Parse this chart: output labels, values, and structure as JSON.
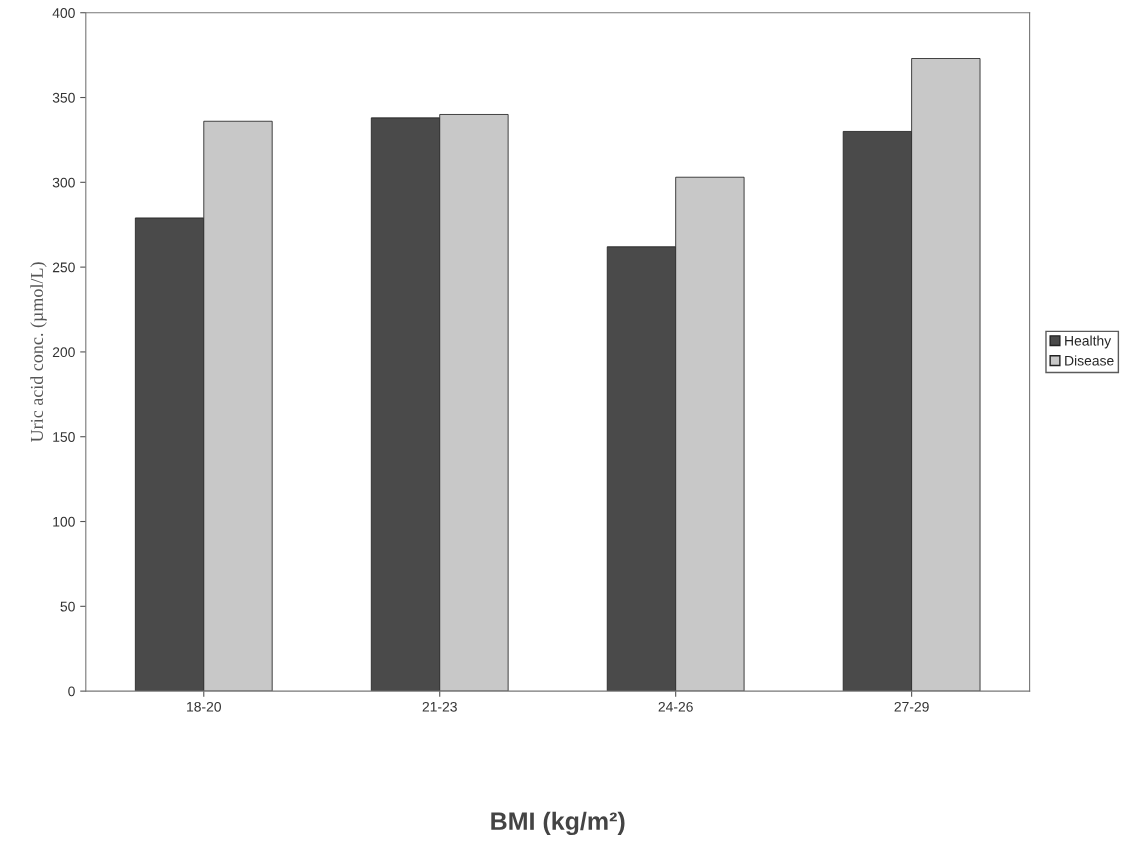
{
  "chart_data": {
    "type": "bar",
    "xlabel": "BMI (kg/m²)",
    "ylabel": "Uric acid conc. (µmol/L)",
    "categories": [
      "18-20",
      "21-23",
      "24-26",
      "27-29"
    ],
    "series": [
      {
        "name": "Healthy",
        "color": "#4a4a4a",
        "values": [
          279,
          338,
          262,
          330
        ]
      },
      {
        "name": "Disease",
        "color": "#c8c8c8",
        "values": [
          336,
          340,
          303,
          373
        ]
      }
    ],
    "ylim": [
      0,
      400
    ],
    "yticks": [
      0,
      50,
      100,
      150,
      200,
      250,
      300,
      350,
      400
    ],
    "grid": false,
    "legend": "right"
  }
}
